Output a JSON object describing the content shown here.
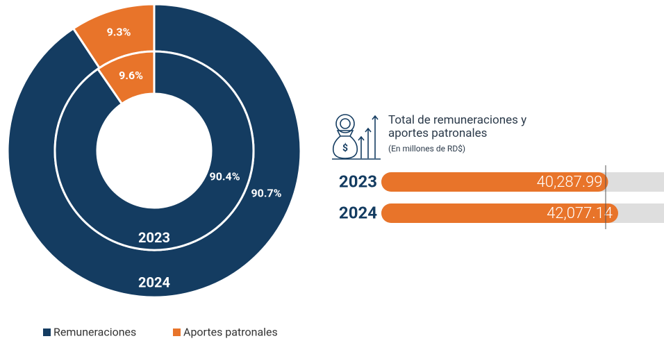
{
  "chart_data": [
    {
      "type": "donut",
      "categories": [
        "Remuneraciones",
        "Aportes patronales"
      ],
      "colors": [
        "#143c61",
        "#e8742a"
      ],
      "series": [
        {
          "name": "2024",
          "values": [
            90.7,
            9.3
          ],
          "value_labels": [
            "90.7%",
            "9.3%"
          ]
        },
        {
          "name": "2023",
          "values": [
            90.4,
            9.6
          ],
          "value_labels": [
            "90.4%",
            "9.6%"
          ]
        }
      ],
      "legend": "bottom-left"
    },
    {
      "type": "bar",
      "orientation": "horizontal",
      "title": "Total de remuneraciones y aportes patronales",
      "subtitle": "(En millones de RD$)",
      "categories": [
        "2023",
        "2024"
      ],
      "values": [
        40287.99,
        42077.14
      ],
      "value_labels": [
        "40,287.99",
        "42,077.14"
      ],
      "color": "#e8742a"
    }
  ]
}
